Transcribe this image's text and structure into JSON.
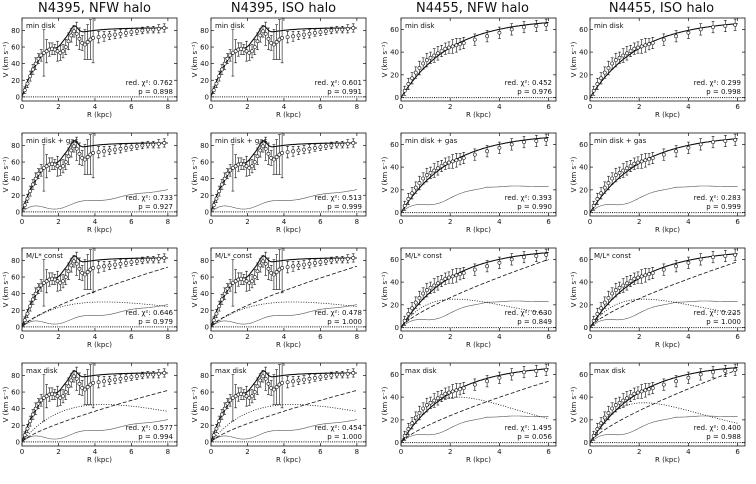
{
  "figure": {
    "column_titles": [
      "N4395, NFW halo",
      "N4395, ISO halo",
      "N4455, NFW halo",
      "N4455, ISO halo"
    ],
    "row_labels": [
      "min disk",
      "min disk + gas",
      "M/L* const",
      "max disk"
    ]
  },
  "chart_data": [
    {
      "type": "line",
      "galaxy": "N4395",
      "halo": "NFW",
      "model": "min disk",
      "title": "min disk",
      "xlabel": "R (kpc)",
      "ylabel": "V (km s⁻¹)",
      "xlim": [
        0,
        8.5
      ],
      "ylim": [
        -5,
        95
      ],
      "xticks": [
        0,
        2,
        4,
        6,
        8
      ],
      "yticks": [
        0,
        20,
        40,
        60,
        80
      ],
      "red_chi2_label": "red. χ²: 0.762",
      "p_label": "p = 0.898",
      "red_chi2": 0.762,
      "p": 0.898,
      "components": [
        "total"
      ],
      "total_end": 83,
      "disk_peak": 0,
      "disk_rpeak": 2.6,
      "gas_end": 0
    },
    {
      "type": "line",
      "galaxy": "N4395",
      "halo": "ISO",
      "model": "min disk",
      "title": "min disk",
      "xlabel": "R (kpc)",
      "ylabel": "V (km s⁻¹)",
      "xlim": [
        0,
        8.5
      ],
      "ylim": [
        -5,
        95
      ],
      "xticks": [
        0,
        2,
        4,
        6,
        8
      ],
      "yticks": [
        0,
        20,
        40,
        60,
        80
      ],
      "red_chi2_label": "red. χ²: 0.601",
      "p_label": "p = 0.991",
      "red_chi2": 0.601,
      "p": 0.991,
      "components": [
        "total"
      ],
      "total_end": 83,
      "disk_peak": 0,
      "disk_rpeak": 2.6,
      "gas_end": 0
    },
    {
      "type": "line",
      "galaxy": "N4455",
      "halo": "NFW",
      "model": "min disk",
      "title": "min disk",
      "xlabel": "R (kpc)",
      "ylabel": "V (km s⁻¹)",
      "xlim": [
        0,
        6.3
      ],
      "ylim": [
        -3,
        70
      ],
      "xticks": [
        0,
        2,
        4,
        6
      ],
      "yticks": [
        0,
        20,
        40,
        60
      ],
      "red_chi2_label": "red. χ²: 0.452",
      "p_label": "p = 0.976",
      "red_chi2": 0.452,
      "p": 0.976,
      "components": [
        "total"
      ],
      "total_end": 66,
      "disk_peak": 0,
      "disk_rpeak": 2.2,
      "gas_end": 0
    },
    {
      "type": "line",
      "galaxy": "N4455",
      "halo": "ISO",
      "model": "min disk",
      "title": "min disk",
      "xlabel": "R (kpc)",
      "ylabel": "V (km s⁻¹)",
      "xlim": [
        0,
        6.3
      ],
      "ylim": [
        -3,
        70
      ],
      "xticks": [
        0,
        2,
        4,
        6
      ],
      "yticks": [
        0,
        20,
        40,
        60
      ],
      "red_chi2_label": "red. χ²: 0.299",
      "p_label": "p = 0.998",
      "red_chi2": 0.299,
      "p": 0.998,
      "components": [
        "total"
      ],
      "total_end": 65,
      "disk_peak": 0,
      "disk_rpeak": 2.2,
      "gas_end": 0
    },
    {
      "type": "line",
      "galaxy": "N4395",
      "halo": "NFW",
      "model": "min disk + gas",
      "title": "min disk + gas",
      "xlabel": "R (kpc)",
      "ylabel": "V (km s⁻¹)",
      "xlim": [
        0,
        8.5
      ],
      "ylim": [
        -5,
        95
      ],
      "xticks": [
        0,
        2,
        4,
        6,
        8
      ],
      "yticks": [
        0,
        20,
        40,
        60,
        80
      ],
      "red_chi2_label": "red. χ²: 0.733",
      "p_label": "p = 0.927",
      "red_chi2": 0.733,
      "p": 0.927,
      "components": [
        "total",
        "gas"
      ],
      "total_end": 83,
      "disk_peak": 0,
      "disk_rpeak": 2.6,
      "gas_end": 27
    },
    {
      "type": "line",
      "galaxy": "N4395",
      "halo": "ISO",
      "model": "min disk + gas",
      "title": "min disk + gas",
      "xlabel": "R (kpc)",
      "ylabel": "V (km s⁻¹)",
      "xlim": [
        0,
        8.5
      ],
      "ylim": [
        -5,
        95
      ],
      "xticks": [
        0,
        2,
        4,
        6,
        8
      ],
      "yticks": [
        0,
        20,
        40,
        60,
        80
      ],
      "red_chi2_label": "red. χ²: 0.513",
      "p_label": "p = 0.999",
      "red_chi2": 0.513,
      "p": 0.999,
      "components": [
        "total",
        "gas"
      ],
      "total_end": 83,
      "disk_peak": 0,
      "disk_rpeak": 2.6,
      "gas_end": 27
    },
    {
      "type": "line",
      "galaxy": "N4455",
      "halo": "NFW",
      "model": "min disk + gas",
      "title": "min disk + gas",
      "xlabel": "R (kpc)",
      "ylabel": "V (km s⁻¹)",
      "xlim": [
        0,
        6.3
      ],
      "ylim": [
        -3,
        70
      ],
      "xticks": [
        0,
        2,
        4,
        6
      ],
      "yticks": [
        0,
        20,
        40,
        60
      ],
      "red_chi2_label": "red. χ²: 0.393",
      "p_label": "p = 0.990",
      "red_chi2": 0.393,
      "p": 0.99,
      "components": [
        "total",
        "gas"
      ],
      "total_end": 66,
      "disk_peak": 0,
      "disk_rpeak": 2.2,
      "gas_end": 23
    },
    {
      "type": "line",
      "galaxy": "N4455",
      "halo": "ISO",
      "model": "min disk + gas",
      "title": "min disk + gas",
      "xlabel": "R (kpc)",
      "ylabel": "V (km s⁻¹)",
      "xlim": [
        0,
        6.3
      ],
      "ylim": [
        -3,
        70
      ],
      "xticks": [
        0,
        2,
        4,
        6
      ],
      "yticks": [
        0,
        20,
        40,
        60
      ],
      "red_chi2_label": "red. χ²: 0.283",
      "p_label": "p = 0.999",
      "red_chi2": 0.283,
      "p": 0.999,
      "components": [
        "total",
        "gas"
      ],
      "total_end": 65,
      "disk_peak": 0,
      "disk_rpeak": 2.2,
      "gas_end": 23
    },
    {
      "type": "line",
      "galaxy": "N4395",
      "halo": "NFW",
      "model": "M/L* const",
      "title": "M/L* const",
      "xlabel": "R (kpc)",
      "ylabel": "V (km s⁻¹)",
      "xlim": [
        0,
        8.5
      ],
      "ylim": [
        -5,
        95
      ],
      "xticks": [
        0,
        2,
        4,
        6,
        8
      ],
      "yticks": [
        0,
        20,
        40,
        60,
        80
      ],
      "red_chi2_label": "red. χ²: 0.646",
      "p_label": "p = 0.979",
      "red_chi2": 0.646,
      "p": 0.979,
      "components": [
        "total",
        "halo",
        "disk",
        "gas"
      ],
      "total_end": 83,
      "halo_end": 72,
      "disk_peak": 30,
      "disk_rpeak": 4.5,
      "gas_end": 27
    },
    {
      "type": "line",
      "galaxy": "N4395",
      "halo": "ISO",
      "model": "M/L* const",
      "title": "M/L* const",
      "xlabel": "R (kpc)",
      "ylabel": "V (km s⁻¹)",
      "xlim": [
        0,
        8.5
      ],
      "ylim": [
        -5,
        95
      ],
      "xticks": [
        0,
        2,
        4,
        6,
        8
      ],
      "yticks": [
        0,
        20,
        40,
        60,
        80
      ],
      "red_chi2_label": "red. χ²: 0.478",
      "p_label": "p = 1.000",
      "red_chi2": 0.478,
      "p": 1.0,
      "components": [
        "total",
        "halo",
        "disk",
        "gas"
      ],
      "total_end": 83,
      "halo_end": 73,
      "disk_peak": 30,
      "disk_rpeak": 4.5,
      "gas_end": 27
    },
    {
      "type": "line",
      "galaxy": "N4455",
      "halo": "NFW",
      "model": "M/L* const",
      "title": "M/L* const",
      "xlabel": "R (kpc)",
      "ylabel": "V (km s⁻¹)",
      "xlim": [
        0,
        6.3
      ],
      "ylim": [
        -3,
        70
      ],
      "xticks": [
        0,
        2,
        4,
        6
      ],
      "yticks": [
        0,
        20,
        40,
        60
      ],
      "red_chi2_label": "red. χ²: 0.630",
      "p_label": "p = 0.849",
      "red_chi2": 0.63,
      "p": 0.849,
      "components": [
        "total",
        "halo",
        "disk",
        "gas"
      ],
      "total_end": 66,
      "halo_end": 60,
      "disk_peak": 25,
      "disk_rpeak": 2.2,
      "gas_end": 23
    },
    {
      "type": "line",
      "galaxy": "N4455",
      "halo": "ISO",
      "model": "M/L* const",
      "title": "M/L* const",
      "xlabel": "R (kpc)",
      "ylabel": "V (km s⁻¹)",
      "xlim": [
        0,
        6.3
      ],
      "ylim": [
        -3,
        70
      ],
      "xticks": [
        0,
        2,
        4,
        6
      ],
      "yticks": [
        0,
        20,
        40,
        60
      ],
      "red_chi2_label": "red. χ²: 0.225",
      "p_label": "p = 1.000",
      "red_chi2": 0.225,
      "p": 1.0,
      "components": [
        "total",
        "halo",
        "disk",
        "gas"
      ],
      "total_end": 65,
      "halo_end": 58,
      "disk_peak": 25,
      "disk_rpeak": 2.2,
      "gas_end": 23
    },
    {
      "type": "line",
      "galaxy": "N4395",
      "halo": "NFW",
      "model": "max disk",
      "title": "max disk",
      "xlabel": "R (kpc)",
      "ylabel": "V (km s⁻¹)",
      "xlim": [
        0,
        8.5
      ],
      "ylim": [
        -5,
        95
      ],
      "xticks": [
        0,
        2,
        4,
        6,
        8
      ],
      "yticks": [
        0,
        20,
        40,
        60,
        80
      ],
      "red_chi2_label": "red. χ²: 0.577",
      "p_label": "p = 0.994",
      "red_chi2": 0.577,
      "p": 0.994,
      "components": [
        "total",
        "halo",
        "disk",
        "gas"
      ],
      "total_end": 83,
      "halo_end": 62,
      "disk_peak": 45,
      "disk_rpeak": 4.5,
      "gas_end": 27
    },
    {
      "type": "line",
      "galaxy": "N4395",
      "halo": "ISO",
      "model": "max disk",
      "title": "max disk",
      "xlabel": "R (kpc)",
      "ylabel": "V (km s⁻¹)",
      "xlim": [
        0,
        8.5
      ],
      "ylim": [
        -5,
        95
      ],
      "xticks": [
        0,
        2,
        4,
        6,
        8
      ],
      "yticks": [
        0,
        20,
        40,
        60,
        80
      ],
      "red_chi2_label": "red. χ²: 0.454",
      "p_label": "p = 1.000",
      "red_chi2": 0.454,
      "p": 1.0,
      "components": [
        "total",
        "halo",
        "disk",
        "gas"
      ],
      "total_end": 83,
      "halo_end": 62,
      "disk_peak": 45,
      "disk_rpeak": 4.5,
      "gas_end": 27
    },
    {
      "type": "line",
      "galaxy": "N4455",
      "halo": "NFW",
      "model": "max disk",
      "title": "max disk",
      "xlabel": "R (kpc)",
      "ylabel": "V (km s⁻¹)",
      "xlim": [
        0,
        6.3
      ],
      "ylim": [
        -3,
        70
      ],
      "xticks": [
        0,
        2,
        4,
        6
      ],
      "yticks": [
        0,
        20,
        40,
        60
      ],
      "red_chi2_label": "red. χ²: 1.495",
      "p_label": "p = 0.056",
      "red_chi2": 1.495,
      "p": 0.056,
      "components": [
        "total",
        "halo",
        "disk",
        "gas"
      ],
      "total_end": 65,
      "halo_end": 54,
      "disk_peak": 40,
      "disk_rpeak": 2.3,
      "gas_end": 23
    },
    {
      "type": "line",
      "galaxy": "N4455",
      "halo": "ISO",
      "model": "max disk",
      "title": "max disk",
      "xlabel": "R (kpc)",
      "ylabel": "V (km s⁻¹)",
      "xlim": [
        0,
        6.3
      ],
      "ylim": [
        -3,
        70
      ],
      "xticks": [
        0,
        2,
        4,
        6
      ],
      "yticks": [
        0,
        20,
        40,
        60
      ],
      "red_chi2_label": "red. χ²: 0.400",
      "p_label": "p = 0.988",
      "red_chi2": 0.4,
      "p": 0.988,
      "components": [
        "total",
        "halo",
        "disk",
        "gas"
      ],
      "total_end": 66,
      "halo_end": 64,
      "disk_peak": 35,
      "disk_rpeak": 2.2,
      "gas_end": 23
    }
  ],
  "observations": {
    "N4395": {
      "r": [
        0.15,
        0.3,
        0.45,
        0.6,
        0.75,
        0.9,
        1.05,
        1.2,
        1.35,
        1.5,
        1.65,
        1.8,
        1.95,
        2.1,
        2.25,
        2.4,
        2.55,
        2.7,
        2.85,
        3.0,
        3.15,
        3.3,
        3.45,
        3.6,
        3.75,
        3.9,
        4.2,
        4.5,
        4.8,
        5.1,
        5.4,
        5.7,
        6.0,
        6.3,
        6.6,
        6.9,
        7.2,
        7.5,
        7.8
      ],
      "v": [
        8,
        16,
        25,
        33,
        40,
        46,
        50,
        53,
        55,
        57,
        58,
        57,
        55,
        53,
        55,
        60,
        67,
        74,
        79,
        76,
        70,
        65,
        63,
        66,
        69,
        71,
        72,
        73,
        74,
        75,
        76,
        77,
        78,
        79,
        80,
        81,
        81,
        82,
        83
      ],
      "err": [
        4,
        5,
        6,
        6,
        7,
        6,
        7,
        28,
        14,
        8,
        7,
        6,
        12,
        9,
        8,
        9,
        10,
        8,
        7,
        14,
        13,
        9,
        18,
        21,
        24,
        30,
        7,
        6,
        5,
        5,
        5,
        4,
        4,
        4,
        4,
        4,
        4,
        5,
        5
      ]
    },
    "N4455": {
      "r": [
        0.15,
        0.3,
        0.45,
        0.6,
        0.75,
        0.9,
        1.05,
        1.2,
        1.35,
        1.5,
        1.65,
        1.8,
        1.95,
        2.1,
        2.25,
        2.4,
        2.55,
        3.0,
        3.5,
        4.0,
        4.5,
        5.0,
        5.5,
        5.9
      ],
      "v": [
        6,
        12,
        17,
        22,
        26,
        30,
        33,
        35,
        37,
        39,
        41,
        43,
        44,
        45,
        46,
        47,
        48,
        51,
        54,
        57,
        60,
        62,
        63,
        64
      ],
      "err": [
        4,
        5,
        5,
        5,
        6,
        5,
        6,
        5,
        6,
        6,
        5,
        5,
        5,
        6,
        6,
        5,
        5,
        5,
        5,
        5,
        5,
        5,
        5,
        5
      ]
    }
  }
}
